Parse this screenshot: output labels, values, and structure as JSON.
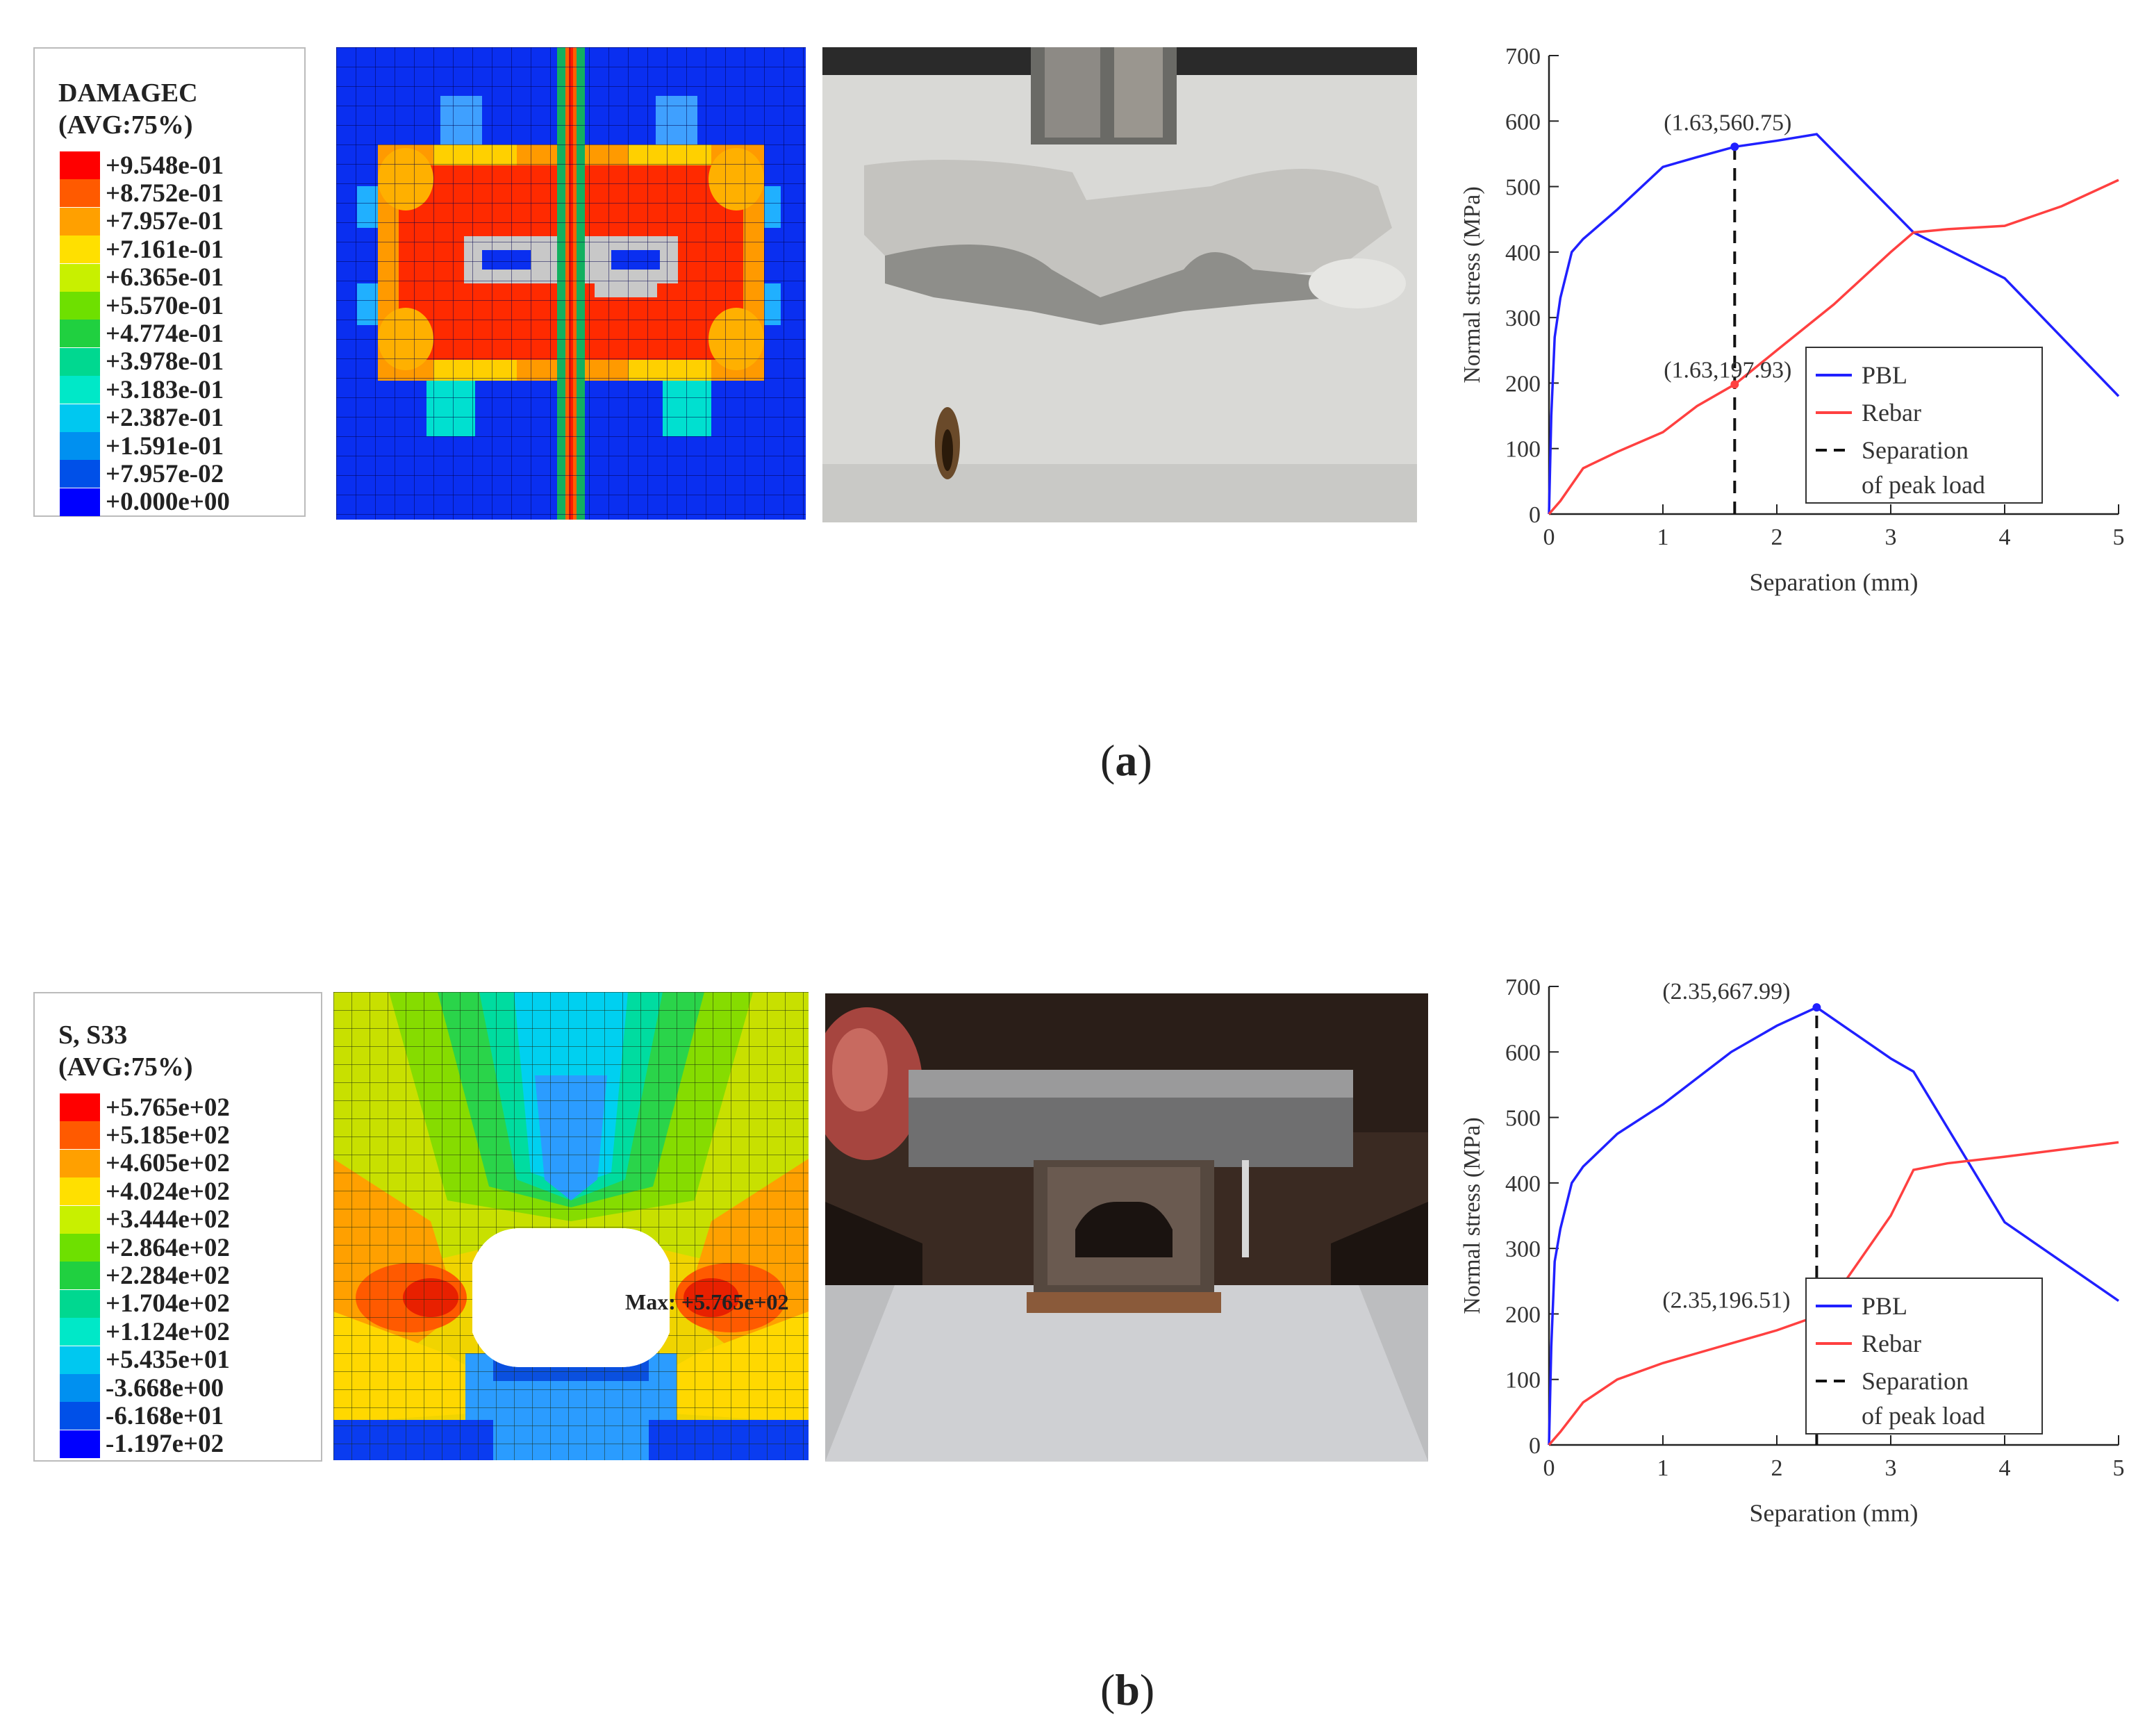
{
  "captions": {
    "a": "a",
    "b": "b"
  },
  "legend_a": {
    "title_line1": "DAMAGEC",
    "title_line2": "(AVG:75%)",
    "values": [
      "+9.548e-01",
      "+8.752e-01",
      "+7.957e-01",
      "+7.161e-01",
      "+6.365e-01",
      "+5.570e-01",
      "+4.774e-01",
      "+3.978e-01",
      "+3.183e-01",
      "+2.387e-01",
      "+1.591e-01",
      "+7.957e-02",
      "+0.000e+00"
    ],
    "colors": [
      "#ff0000",
      "#ff5a00",
      "#ffa000",
      "#ffe000",
      "#c8f000",
      "#6ee000",
      "#20d040",
      "#00d890",
      "#00e8c8",
      "#00c8f0",
      "#0090f0",
      "#0050e8",
      "#0000ff"
    ]
  },
  "legend_b": {
    "title_line1": "S, S33",
    "title_line2": "(AVG:75%)",
    "values": [
      "+5.765e+02",
      "+5.185e+02",
      "+4.605e+02",
      "+4.024e+02",
      "+3.444e+02",
      "+2.864e+02",
      "+2.284e+02",
      "+1.704e+02",
      "+1.124e+02",
      "+5.435e+01",
      "-3.668e+00",
      "-6.168e+01",
      "-1.197e+02"
    ],
    "colors": [
      "#ff0000",
      "#ff5a00",
      "#ffa000",
      "#ffe000",
      "#c8f000",
      "#6ee000",
      "#20d040",
      "#00d890",
      "#00e8c8",
      "#00c8f0",
      "#0090f0",
      "#0050e8",
      "#0000ff"
    ]
  },
  "contour_b": {
    "max_label": "Max: +5.765e+02"
  },
  "chart_data": [
    {
      "type": "line",
      "xlabel": "Separation (mm)",
      "ylabel": "Normal stress (MPa)",
      "xlim": [
        0,
        5
      ],
      "ylim": [
        0,
        700
      ],
      "xticks": [
        0,
        1,
        2,
        3,
        4,
        5
      ],
      "yticks": [
        0,
        100,
        200,
        300,
        400,
        500,
        600,
        700
      ],
      "legend_position": "bottom-right",
      "series": [
        {
          "name": "PBL",
          "color": "#2020ff",
          "style": "solid",
          "x": [
            0,
            0.02,
            0.05,
            0.1,
            0.2,
            0.3,
            0.6,
            1.0,
            1.3,
            1.63,
            2.0,
            2.35,
            3.2,
            4.0,
            5.0
          ],
          "y": [
            0,
            150,
            270,
            330,
            400,
            420,
            465,
            530,
            545,
            560.75,
            570,
            580,
            430,
            360,
            180
          ]
        },
        {
          "name": "Rebar",
          "color": "#ff4040",
          "style": "solid",
          "x": [
            0,
            0.1,
            0.3,
            0.6,
            1.0,
            1.3,
            1.63,
            2.0,
            2.5,
            3.0,
            3.2,
            3.5,
            4.0,
            4.5,
            5.0
          ],
          "y": [
            0,
            20,
            70,
            95,
            125,
            165,
            197.93,
            250,
            320,
            400,
            430,
            435,
            440,
            470,
            510
          ]
        },
        {
          "name": "Separation",
          "name_line2": "of peak load",
          "color": "#111111",
          "style": "dashed",
          "x": [
            1.63,
            1.63
          ],
          "y": [
            0,
            560.75
          ]
        }
      ],
      "annotations": [
        {
          "text": "(1.63,560.75)",
          "x": 1.63,
          "y": 560.75
        },
        {
          "text": "(1.63,197.93)",
          "x": 1.63,
          "y": 197.93
        }
      ]
    },
    {
      "type": "line",
      "xlabel": "Separation (mm)",
      "ylabel": "Normal stress (MPa)",
      "xlim": [
        0,
        5
      ],
      "ylim": [
        0,
        700
      ],
      "xticks": [
        0,
        1,
        2,
        3,
        4,
        5
      ],
      "yticks": [
        0,
        100,
        200,
        300,
        400,
        500,
        600,
        700
      ],
      "legend_position": "bottom-right",
      "series": [
        {
          "name": "PBL",
          "color": "#2020ff",
          "style": "solid",
          "x": [
            0,
            0.02,
            0.05,
            0.1,
            0.2,
            0.3,
            0.6,
            1.0,
            1.3,
            1.6,
            2.0,
            2.35,
            3.0,
            3.2,
            4.0,
            5.0
          ],
          "y": [
            0,
            150,
            280,
            330,
            400,
            425,
            475,
            520,
            560,
            600,
            640,
            667.99,
            590,
            570,
            340,
            220
          ]
        },
        {
          "name": "Rebar",
          "color": "#ff4040",
          "style": "solid",
          "x": [
            0,
            0.1,
            0.3,
            0.6,
            1.0,
            1.3,
            1.6,
            2.0,
            2.35,
            2.6,
            3.0,
            3.2,
            3.5,
            4.0,
            5.0
          ],
          "y": [
            0,
            20,
            65,
            100,
            125,
            140,
            155,
            175,
            196.51,
            250,
            350,
            420,
            430,
            440,
            462
          ]
        },
        {
          "name": "Separation",
          "name_line2": "of peak load",
          "color": "#111111",
          "style": "dashed",
          "x": [
            2.35,
            2.35
          ],
          "y": [
            0,
            667.99
          ]
        }
      ],
      "annotations": [
        {
          "text": "(2.35,667.99)",
          "x": 2.35,
          "y": 667.99
        },
        {
          "text": "(2.35,196.51)",
          "x": 2.35,
          "y": 196.51
        }
      ]
    }
  ]
}
